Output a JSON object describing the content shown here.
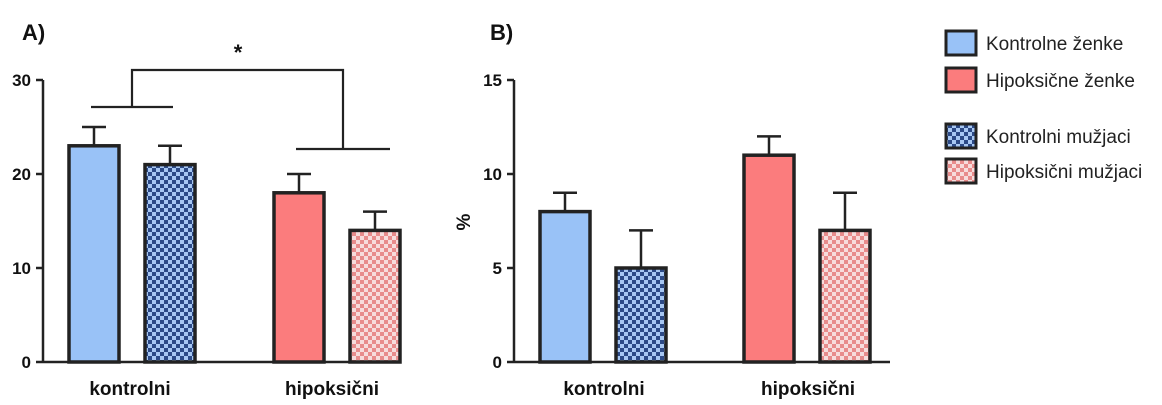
{
  "colors": {
    "female_control": "#99C2F7",
    "female_hypoxic": "#FB7C7D",
    "male_control_dark": "#2C4A87",
    "male_control_light": "#A7C7F3",
    "male_hypoxic_dark": "#E88C8C",
    "male_hypoxic_light": "#F7DCDC",
    "outline": "#222222"
  },
  "legend": {
    "items": [
      {
        "label": "Kontrolne ženke",
        "pattern": "solid-blue"
      },
      {
        "label": "Hipoksične ženke",
        "pattern": "solid-red"
      },
      {
        "label": "Kontrolni mužjaci",
        "pattern": "check-blue"
      },
      {
        "label": "Hipoksični mužjaci",
        "pattern": "check-red"
      }
    ]
  },
  "chart_data": [
    {
      "type": "bar",
      "panel": "A)",
      "title": "",
      "xlabel": "",
      "ylabel": "",
      "categories": [
        "kontrolni",
        "hipoksični"
      ],
      "ylim": [
        0,
        30
      ],
      "yticks": [
        "0",
        "10",
        "20",
        "30"
      ],
      "series": [
        {
          "name": "Kontrolne ženke",
          "pattern": "solid-blue",
          "category_index": 0,
          "value": 23,
          "error": 2
        },
        {
          "name": "Kontrolni mužjaci",
          "pattern": "check-blue",
          "category_index": 0,
          "value": 21,
          "error": 2
        },
        {
          "name": "Hipoksične ženke",
          "pattern": "solid-red",
          "category_index": 1,
          "value": 18,
          "error": 2
        },
        {
          "name": "Hipoksični mužjaci",
          "pattern": "check-red",
          "category_index": 1,
          "value": 14,
          "error": 2
        }
      ],
      "significance": {
        "label": "*",
        "between": [
          "kontrolni",
          "hipoksični"
        ]
      }
    },
    {
      "type": "bar",
      "panel": "B)",
      "title": "",
      "xlabel": "",
      "ylabel": "%",
      "categories": [
        "kontrolni",
        "hipoksični"
      ],
      "ylim": [
        0,
        15
      ],
      "yticks": [
        "0",
        "5",
        "10",
        "15"
      ],
      "series": [
        {
          "name": "Kontrolne ženke",
          "pattern": "solid-blue",
          "category_index": 0,
          "value": 8,
          "error": 1
        },
        {
          "name": "Kontrolni mužjaci",
          "pattern": "check-blue",
          "category_index": 0,
          "value": 5,
          "error": 2
        },
        {
          "name": "Hipoksične ženke",
          "pattern": "solid-red",
          "category_index": 1,
          "value": 11,
          "error": 1
        },
        {
          "name": "Hipoksični mužjaci",
          "pattern": "check-red",
          "category_index": 1,
          "value": 7,
          "error": 2
        }
      ]
    }
  ]
}
